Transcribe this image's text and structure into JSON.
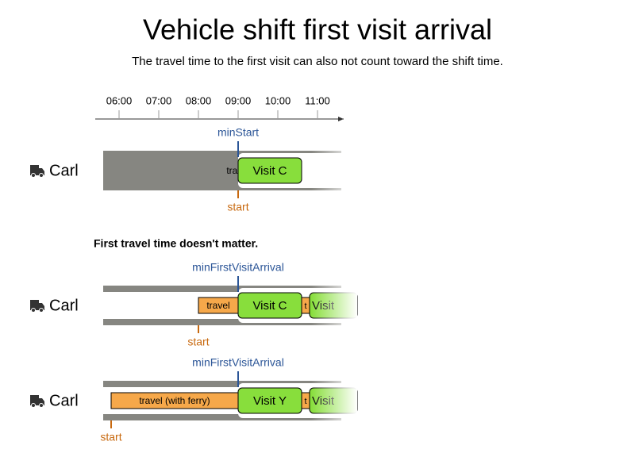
{
  "title": "Vehicle shift first visit arrival",
  "subtitle": "The travel time to the first visit can also not count toward the shift time.",
  "axis": {
    "ticks": [
      "06:00",
      "07:00",
      "08:00",
      "09:00",
      "10:00",
      "11:00"
    ]
  },
  "section_heading": "First travel time doesn't matter.",
  "rows": [
    {
      "vehicle": "Carl",
      "marker": "minStart",
      "start": "start",
      "travel": "travel",
      "visits": [
        "Visit C"
      ]
    },
    {
      "vehicle": "Carl",
      "marker": "minFirstVisitArrival",
      "start": "start",
      "travel": "travel",
      "short_travel": "t",
      "visits": [
        "Visit C",
        "Visit"
      ]
    },
    {
      "vehicle": "Carl",
      "marker": "minFirstVisitArrival",
      "start": "start",
      "travel": "travel (with ferry)",
      "short_travel": "t",
      "visits": [
        "Visit Y",
        "Visit"
      ]
    }
  ]
}
